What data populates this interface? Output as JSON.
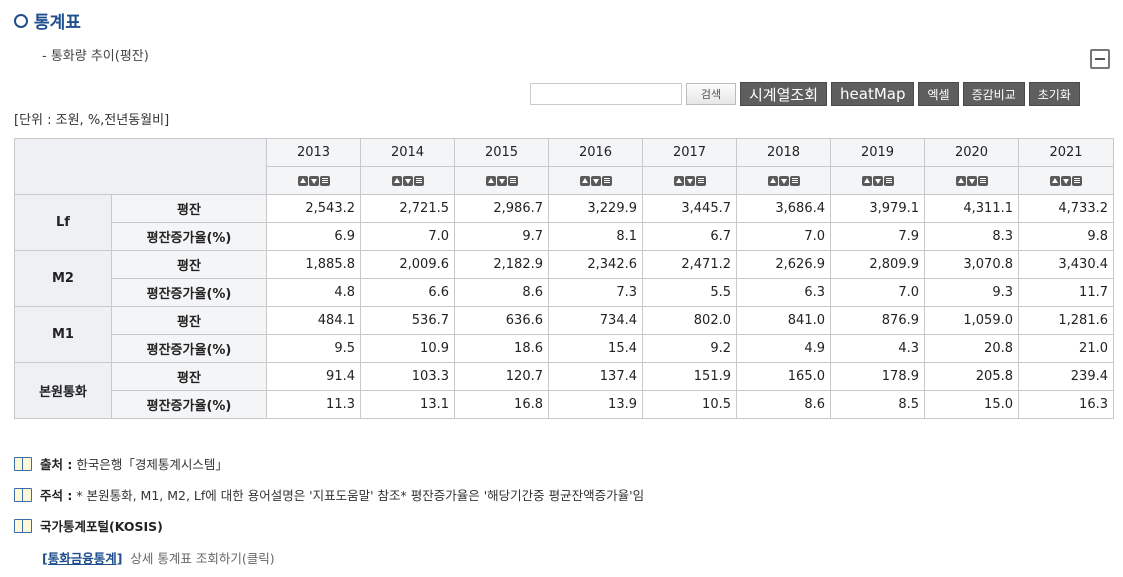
{
  "header": {
    "title": "통계표",
    "subtitle": "- 통화량 추이(평잔)"
  },
  "toolbar": {
    "search_placeholder": "",
    "search_label": "검색",
    "timeseries_label": "시계열조회",
    "heatmap_label": "heatMap",
    "excel_label": "엑셀",
    "compare_label": "증감비교",
    "reset_label": "초기화"
  },
  "unit": "[단위 : 조원, %,전년동월비]",
  "table": {
    "years": [
      "2013",
      "2014",
      "2015",
      "2016",
      "2017",
      "2018",
      "2019",
      "2020",
      "2021"
    ],
    "groups": [
      {
        "name": "Lf",
        "rows": [
          {
            "metric": "평잔",
            "values": [
              "2,543.2",
              "2,721.5",
              "2,986.7",
              "3,229.9",
              "3,445.7",
              "3,686.4",
              "3,979.1",
              "4,311.1",
              "4,733.2"
            ]
          },
          {
            "metric": "평잔증가율(%)",
            "values": [
              "6.9",
              "7.0",
              "9.7",
              "8.1",
              "6.7",
              "7.0",
              "7.9",
              "8.3",
              "9.8"
            ]
          }
        ]
      },
      {
        "name": "M2",
        "rows": [
          {
            "metric": "평잔",
            "values": [
              "1,885.8",
              "2,009.6",
              "2,182.9",
              "2,342.6",
              "2,471.2",
              "2,626.9",
              "2,809.9",
              "3,070.8",
              "3,430.4"
            ]
          },
          {
            "metric": "평잔증가율(%)",
            "values": [
              "4.8",
              "6.6",
              "8.6",
              "7.3",
              "5.5",
              "6.3",
              "7.0",
              "9.3",
              "11.7"
            ]
          }
        ]
      },
      {
        "name": "M1",
        "rows": [
          {
            "metric": "평잔",
            "values": [
              "484.1",
              "536.7",
              "636.6",
              "734.4",
              "802.0",
              "841.0",
              "876.9",
              "1,059.0",
              "1,281.6"
            ]
          },
          {
            "metric": "평잔증가율(%)",
            "values": [
              "9.5",
              "10.9",
              "18.6",
              "15.4",
              "9.2",
              "4.9",
              "4.3",
              "20.8",
              "21.0"
            ]
          }
        ]
      },
      {
        "name": "본원통화",
        "rows": [
          {
            "metric": "평잔",
            "values": [
              "91.4",
              "103.3",
              "120.7",
              "137.4",
              "151.9",
              "165.0",
              "178.9",
              "205.8",
              "239.4"
            ]
          },
          {
            "metric": "평잔증가율(%)",
            "values": [
              "11.3",
              "13.1",
              "16.8",
              "13.9",
              "10.5",
              "8.6",
              "8.5",
              "15.0",
              "16.3"
            ]
          }
        ]
      }
    ]
  },
  "notes": {
    "source_label": "출처 :",
    "source_text": "한국은행「경제통계시스템」",
    "remark_label": "주석 :",
    "remark_text": "* 본원통화, M1, M2, Lf에 대한 용어설명은 '지표도움말' 참조* 평잔증가율은 '해당기간중 평균잔액증가율'임",
    "kosis_label": "국가통계포털(KOSIS)",
    "kosis_link_text": "[통화금융통계]",
    "kosis_link_desc": "상세 통계표 조회하기(클릭)"
  },
  "colors": {
    "title": "#1f4e8c",
    "button_dark": "#5e5e5e",
    "header_bg": "#f4f5f7"
  }
}
